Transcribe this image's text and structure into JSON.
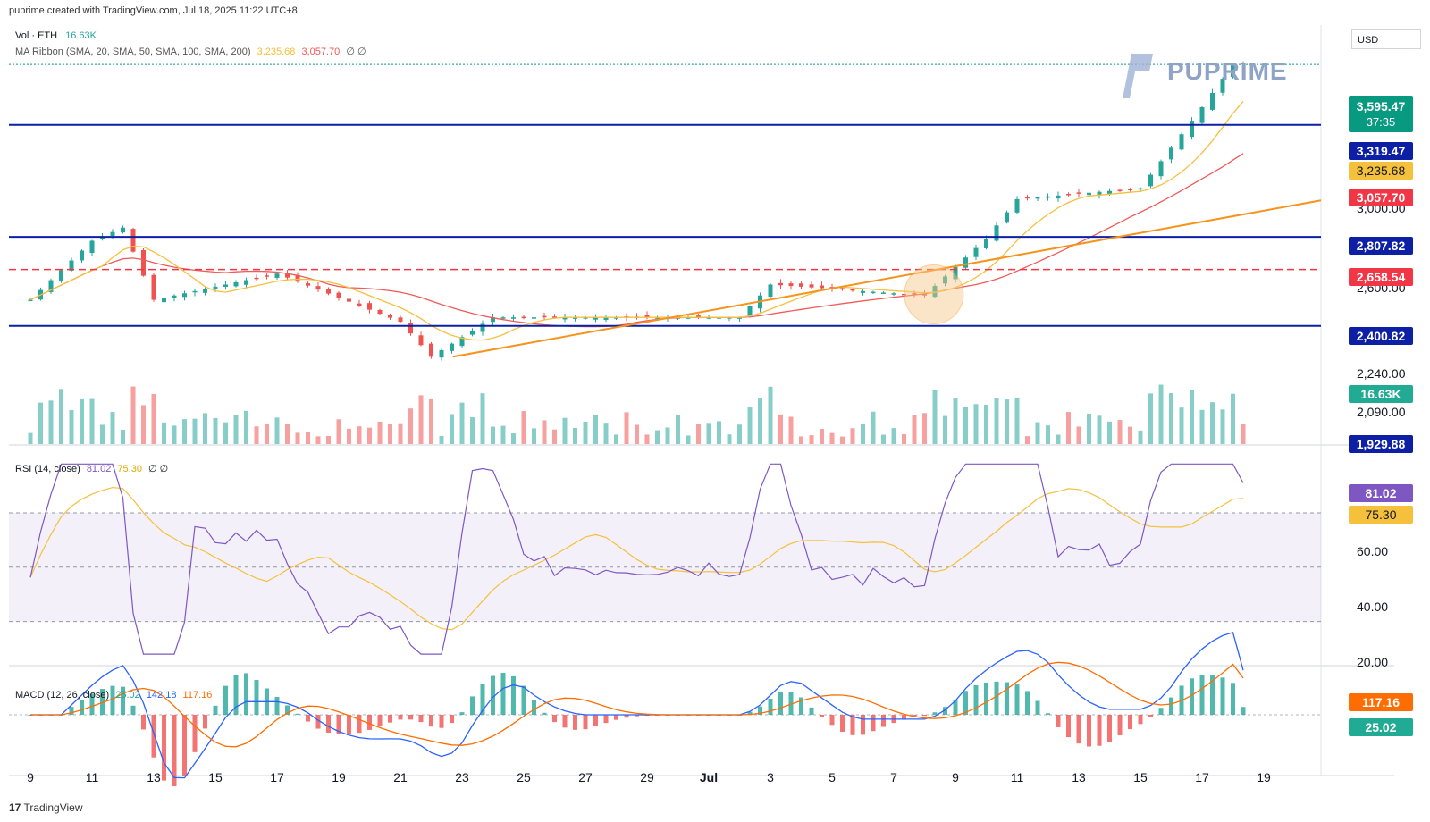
{
  "header": {
    "text": "puprime created with TradingView.com, Jul 18, 2025 11:22 UTC+8"
  },
  "logo": {
    "text": "PUPRIME"
  },
  "footer": {
    "brand": "TradingView",
    "mark": "17"
  },
  "currency_label": "USD",
  "legend": {
    "vol": "Vol · ETH",
    "vol_value": "16.63K",
    "ma": "MA Ribbon (SMA, 20, SMA, 50, SMA, 100, SMA, 200)",
    "ma20_value": "3,235.68",
    "ma50_value": "3,057.70",
    "ma_extra": "∅ ∅",
    "rsi": "RSI (14, close)",
    "rsi_value": "81.02",
    "rsi_ma_value": "75.30",
    "rsi_extra": "∅ ∅",
    "macd": "MACD (12, 26, close)",
    "macd_hist": "25.02",
    "macd_line": "142.18",
    "macd_signal": "117.16"
  },
  "price_axis_labels": [
    "3,000.00",
    "2,600.00",
    "2,240.00",
    "2,090.00"
  ],
  "rsi_axis_labels": [
    "60.00",
    "40.00",
    "20.00"
  ],
  "badges": {
    "price": "3,595.47",
    "countdown": "37:35",
    "level1": "3,319.47",
    "ma20": "3,235.68",
    "ma50": "3,057.70",
    "level2": "2,807.82",
    "dashed": "2,658.54",
    "level3": "2,400.82",
    "vol": "16.63K",
    "bottom": "1,929.88",
    "rsi": "81.02",
    "rsi_ma": "75.30",
    "macd_signal": "117.16",
    "macd_hist": "25.02"
  },
  "x_labels": [
    "9",
    "11",
    "13",
    "15",
    "17",
    "19",
    "21",
    "23",
    "25",
    "27",
    "29",
    "Jul",
    "3",
    "5",
    "7",
    "9",
    "11",
    "13",
    "15",
    "17",
    "19"
  ],
  "colors": {
    "up": "#26a69a",
    "down": "#ef5350",
    "level": "#0d1fa5",
    "trend": "#f7931a",
    "ma20": "#f5c03c",
    "ma50": "#f05a5a",
    "rsi": "#7e57c2",
    "macd": "#2962ff",
    "signal": "#ff6d00"
  },
  "chart_data": {
    "type": "candlestick",
    "symbol": "ETH",
    "x_range": [
      "Jun 9",
      "Jul 19"
    ],
    "price_key_points": [
      {
        "date": "Jun 9",
        "close": 2520
      },
      {
        "date": "Jun 11",
        "close": 2790
      },
      {
        "date": "Jun 12",
        "close": 2850
      },
      {
        "date": "Jun 13",
        "close": 2520
      },
      {
        "date": "Jun 17",
        "close": 2640
      },
      {
        "date": "Jun 21",
        "close": 2420
      },
      {
        "date": "Jun 22",
        "close": 2260
      },
      {
        "date": "Jun 24",
        "close": 2440
      },
      {
        "date": "Jul 2",
        "close": 2440
      },
      {
        "date": "Jul 3",
        "close": 2590
      },
      {
        "date": "Jul 8",
        "close": 2540
      },
      {
        "date": "Jul 10",
        "close": 2800
      },
      {
        "date": "Jul 11",
        "close": 2980
      },
      {
        "date": "Jul 15",
        "close": 3030
      },
      {
        "date": "Jul 17",
        "close": 3400
      },
      {
        "date": "Jul 18",
        "close": 3595.47
      }
    ],
    "horizontal_levels": [
      3319.47,
      2807.82,
      2400.82
    ],
    "dashed_level": 2658.54,
    "rsi": {
      "last": 81.02,
      "ma": 75.3,
      "bands": [
        70,
        50,
        30
      ]
    },
    "macd": {
      "macd": 142.18,
      "signal": 117.16,
      "histogram": 25.02
    }
  }
}
